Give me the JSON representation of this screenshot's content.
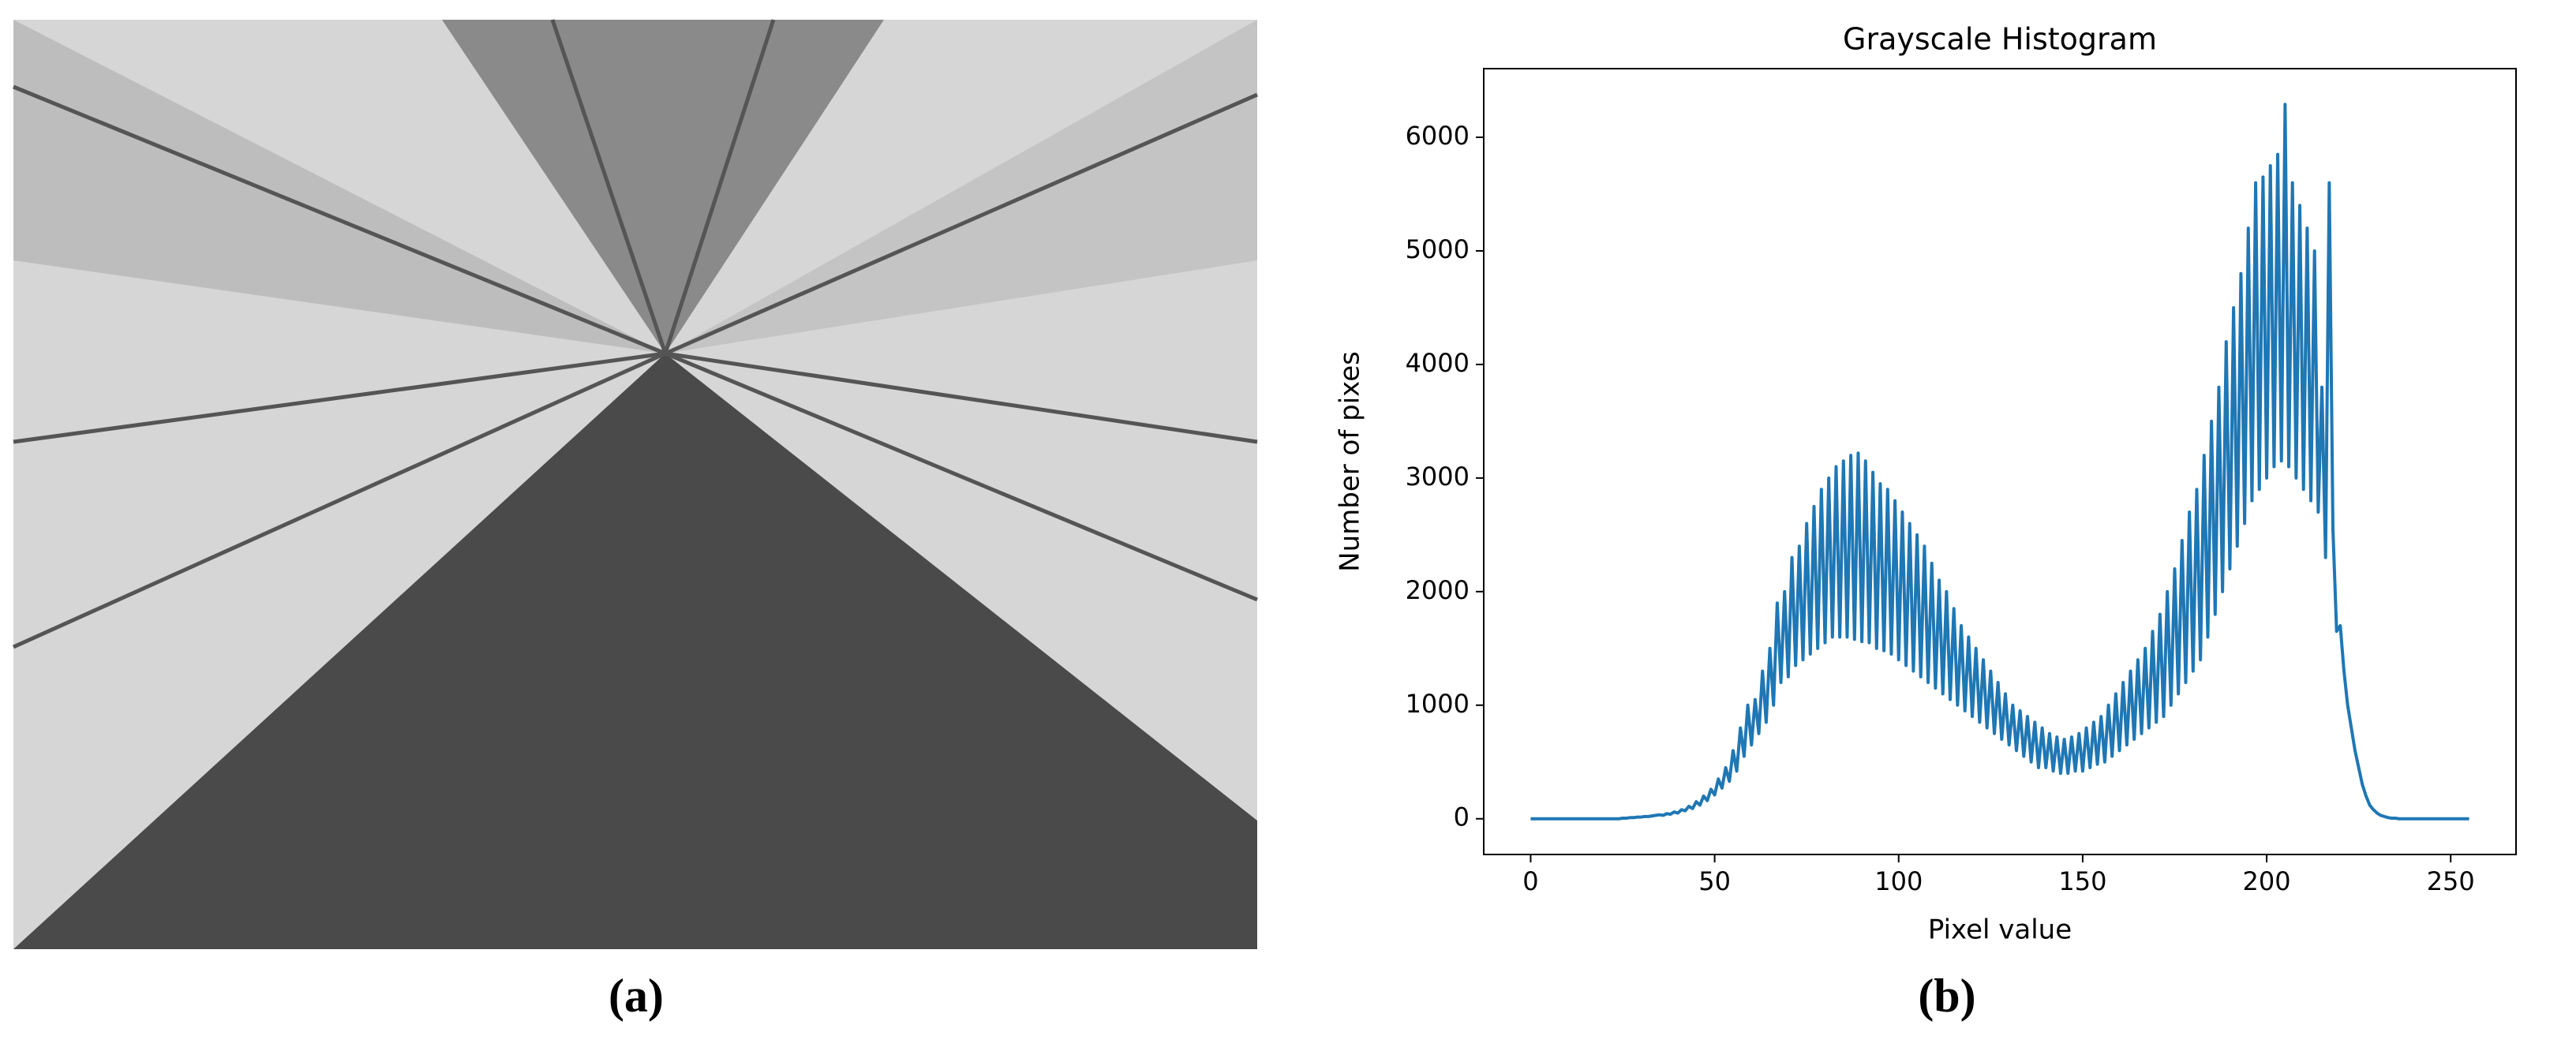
{
  "panels": [
    "(a)",
    "(b)"
  ],
  "chart_data": {
    "type": "line",
    "title": "Grayscale Histogram",
    "xlabel": "Pixel value",
    "ylabel": "Number of pixes",
    "color": "#1f77b4",
    "x": [
      0,
      1,
      2,
      3,
      4,
      5,
      6,
      7,
      8,
      9,
      10,
      11,
      12,
      13,
      14,
      15,
      16,
      17,
      18,
      19,
      20,
      21,
      22,
      23,
      24,
      25,
      26,
      27,
      28,
      29,
      30,
      31,
      32,
      33,
      34,
      35,
      36,
      37,
      38,
      39,
      40,
      41,
      42,
      43,
      44,
      45,
      46,
      47,
      48,
      49,
      50,
      51,
      52,
      53,
      54,
      55,
      56,
      57,
      58,
      59,
      60,
      61,
      62,
      63,
      64,
      65,
      66,
      67,
      68,
      69,
      70,
      71,
      72,
      73,
      74,
      75,
      76,
      77,
      78,
      79,
      80,
      81,
      82,
      83,
      84,
      85,
      86,
      87,
      88,
      89,
      90,
      91,
      92,
      93,
      94,
      95,
      96,
      97,
      98,
      99,
      100,
      101,
      102,
      103,
      104,
      105,
      106,
      107,
      108,
      109,
      110,
      111,
      112,
      113,
      114,
      115,
      116,
      117,
      118,
      119,
      120,
      121,
      122,
      123,
      124,
      125,
      126,
      127,
      128,
      129,
      130,
      131,
      132,
      133,
      134,
      135,
      136,
      137,
      138,
      139,
      140,
      141,
      142,
      143,
      144,
      145,
      146,
      147,
      148,
      149,
      150,
      151,
      152,
      153,
      154,
      155,
      156,
      157,
      158,
      159,
      160,
      161,
      162,
      163,
      164,
      165,
      166,
      167,
      168,
      169,
      170,
      171,
      172,
      173,
      174,
      175,
      176,
      177,
      178,
      179,
      180,
      181,
      182,
      183,
      184,
      185,
      186,
      187,
      188,
      189,
      190,
      191,
      192,
      193,
      194,
      195,
      196,
      197,
      198,
      199,
      200,
      201,
      202,
      203,
      204,
      205,
      206,
      207,
      208,
      209,
      210,
      211,
      212,
      213,
      214,
      215,
      216,
      217,
      218,
      219,
      220,
      221,
      222,
      223,
      224,
      225,
      226,
      227,
      228,
      229,
      230,
      231,
      232,
      233,
      234,
      235,
      236,
      237,
      238,
      239,
      240,
      241,
      242,
      243,
      244,
      245,
      246,
      247,
      248,
      249,
      250,
      251,
      252,
      253,
      254,
      255
    ],
    "values": [
      0,
      0,
      0,
      0,
      0,
      0,
      0,
      0,
      0,
      0,
      0,
      0,
      0,
      0,
      0,
      0,
      0,
      0,
      0,
      0,
      0,
      0,
      0,
      0,
      0,
      5,
      5,
      10,
      10,
      15,
      15,
      20,
      20,
      25,
      30,
      35,
      30,
      45,
      40,
      60,
      50,
      80,
      70,
      110,
      90,
      150,
      120,
      200,
      160,
      260,
      210,
      350,
      270,
      450,
      330,
      600,
      420,
      800,
      550,
      1000,
      650,
      1050,
      750,
      1300,
      850,
      1500,
      1000,
      1900,
      1200,
      2000,
      1250,
      2300,
      1350,
      2400,
      1400,
      2600,
      1450,
      2750,
      1500,
      2900,
      1550,
      3000,
      1600,
      3100,
      1600,
      3150,
      1600,
      3200,
      1580,
      3220,
      1560,
      3150,
      1550,
      3050,
      1500,
      2950,
      1480,
      2900,
      1450,
      2800,
      1400,
      2700,
      1350,
      2600,
      1300,
      2500,
      1250,
      2400,
      1200,
      2250,
      1150,
      2100,
      1100,
      2000,
      1050,
      1850,
      1000,
      1700,
      950,
      1600,
      900,
      1500,
      850,
      1400,
      800,
      1300,
      750,
      1200,
      700,
      1100,
      650,
      1000,
      600,
      950,
      550,
      900,
      500,
      850,
      450,
      800,
      450,
      750,
      420,
      720,
      400,
      700,
      400,
      720,
      420,
      750,
      420,
      800,
      450,
      850,
      480,
      900,
      500,
      1000,
      550,
      1100,
      600,
      1200,
      650,
      1300,
      700,
      1400,
      750,
      1500,
      800,
      1650,
      850,
      1800,
      900,
      2000,
      1000,
      2200,
      1100,
      2450,
      1200,
      2700,
      1300,
      2900,
      1400,
      3200,
      1600,
      3500,
      1800,
      3800,
      2000,
      4200,
      2200,
      4500,
      2400,
      4800,
      2600,
      5200,
      2800,
      5600,
      2900,
      5650,
      3000,
      5750,
      3100,
      5850,
      3150,
      6290,
      3100,
      5600,
      3000,
      5400,
      2900,
      5200,
      2800,
      5000,
      2700,
      3800,
      2300,
      5600,
      2550,
      1650,
      1700,
      1300,
      1000,
      800,
      600,
      450,
      300,
      200,
      120,
      80,
      50,
      30,
      20,
      10,
      5,
      5,
      0,
      0,
      0,
      0,
      0,
      0,
      0,
      0,
      0,
      0,
      0,
      0,
      0,
      0,
      0,
      0,
      0,
      0,
      0,
      0
    ],
    "xlim": [
      -12.75,
      267.75
    ],
    "ylim": [
      -314.5,
      6604.5
    ],
    "xticks": [
      0,
      50,
      100,
      150,
      200,
      250
    ],
    "yticks": [
      0,
      1000,
      2000,
      3000,
      4000,
      5000,
      6000
    ]
  }
}
